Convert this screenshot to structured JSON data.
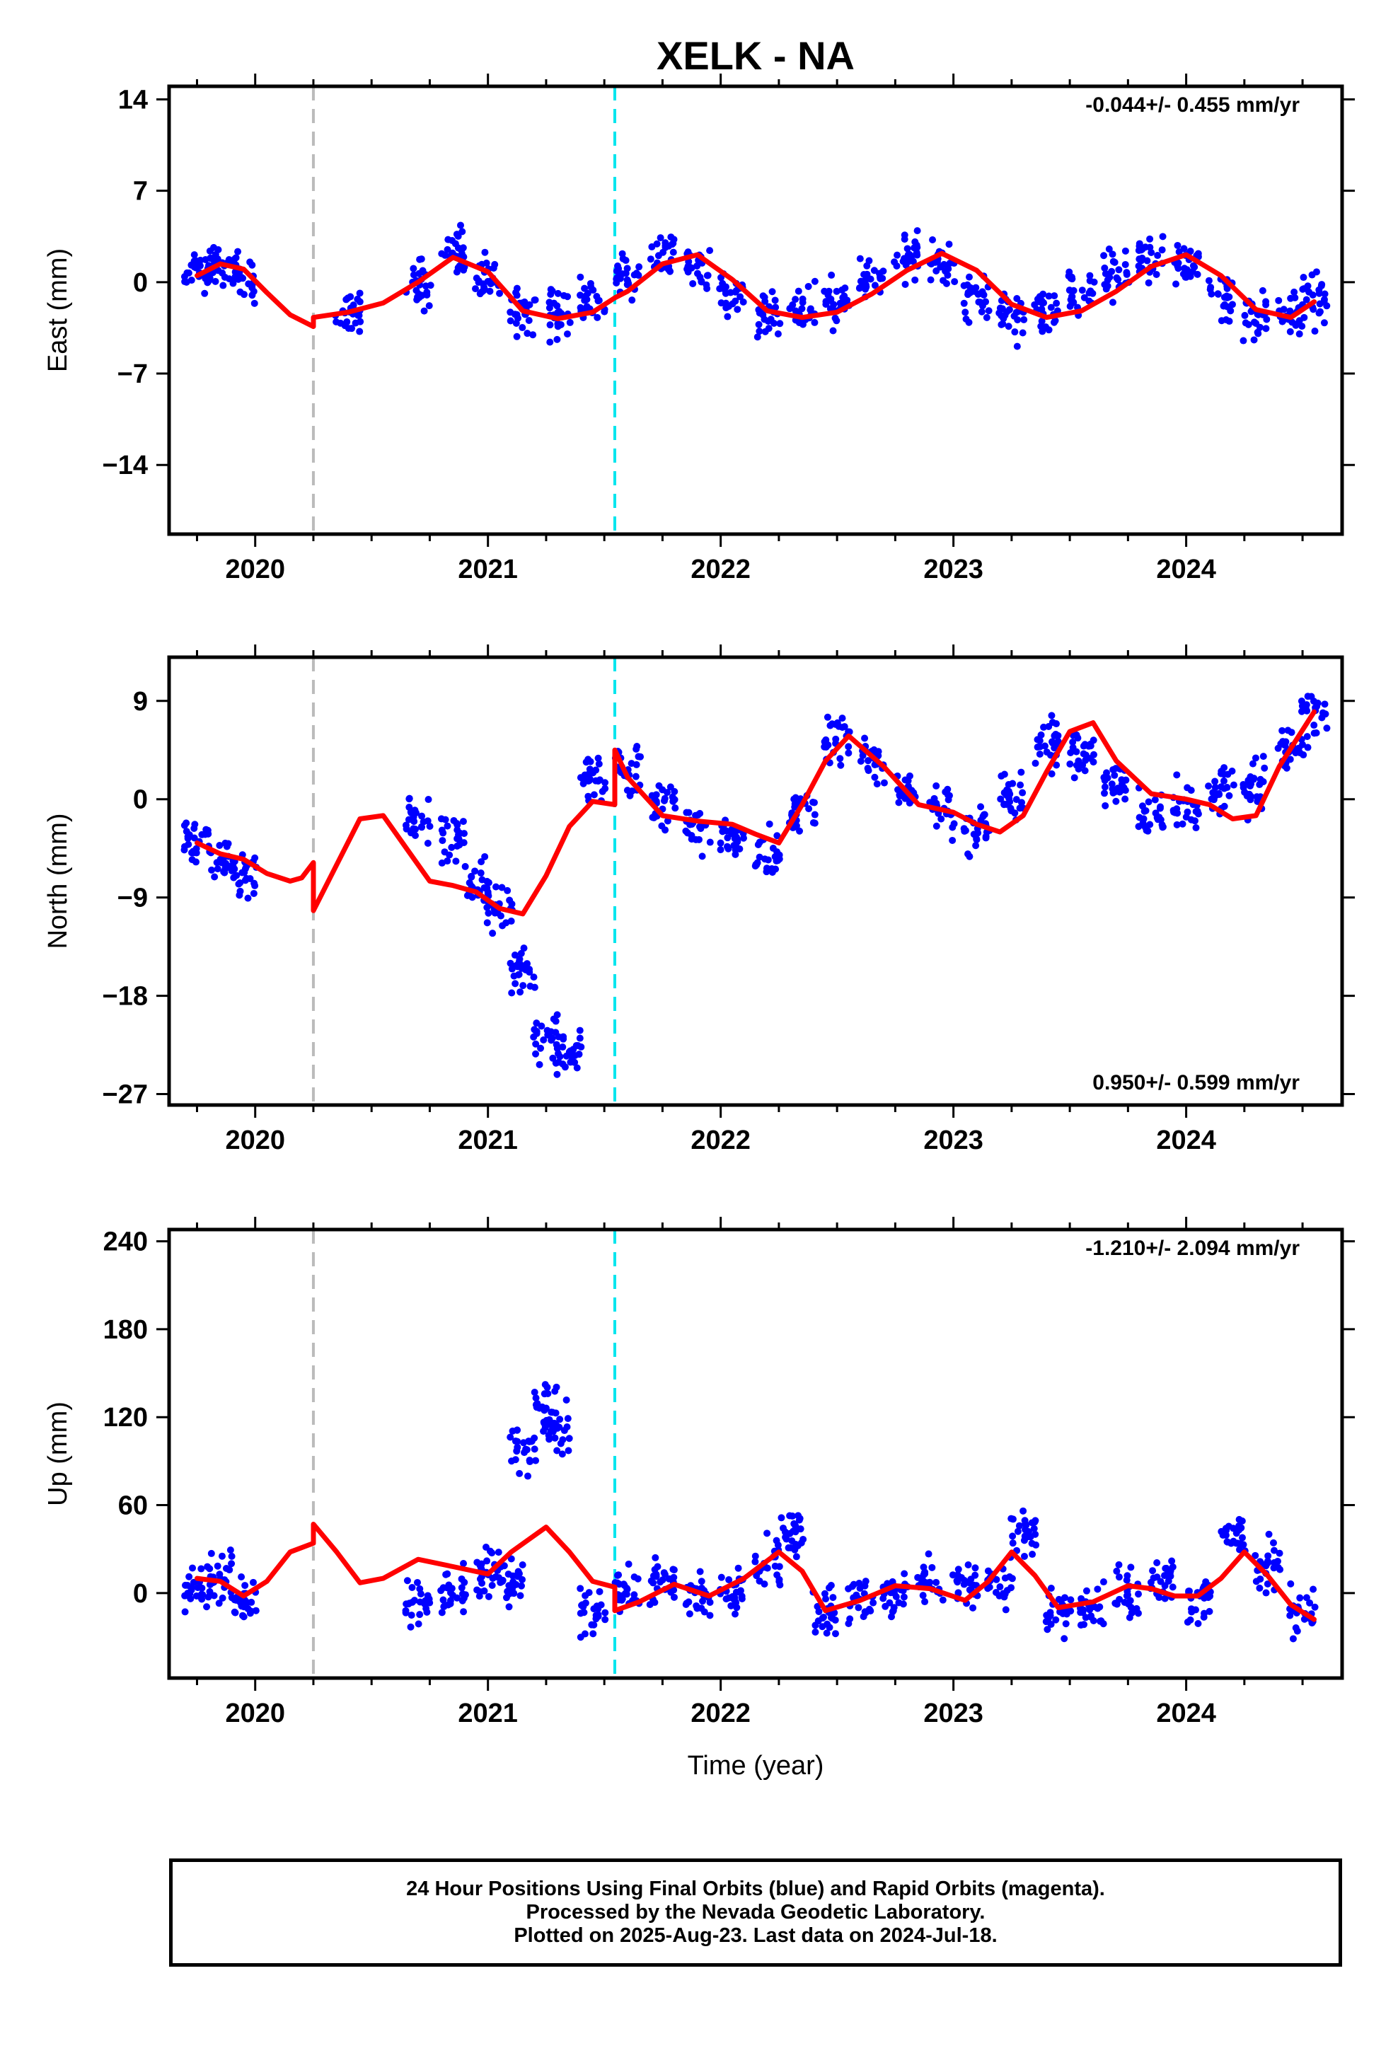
{
  "chart_data": {
    "type": "scatter",
    "title": "XELK - NA",
    "xlabel": "Time (year)",
    "x_ticks": [
      2020,
      2021,
      2022,
      2023,
      2024
    ],
    "xlim": [
      2019.63,
      2024.67
    ],
    "event_lines": [
      {
        "x": 2020.25,
        "color": "#bbbbbb",
        "style": "dashed"
      },
      {
        "x": 2021.545,
        "color": "#00e5ee",
        "style": "dashed"
      }
    ],
    "colors": {
      "points": "#0000ff",
      "model": "#ff0000"
    },
    "panels": [
      {
        "ylabel": "East (mm)",
        "ylim": [
          -19.3,
          15
        ],
        "y_ticks": [
          14,
          7,
          0,
          -7,
          -14
        ],
        "tick_labels": [
          "14",
          "7",
          "0",
          "−7",
          "−14"
        ],
        "rate": "-0.044+/- 0.455 mm/yr",
        "rate_position": "top-right",
        "series": [
          {
            "name": "Final Orbits",
            "x": [
              2019.75,
              2019.85,
              2019.95,
              2020.4,
              2020.7,
              2020.85,
              2021.0,
              2021.15,
              2021.3,
              2021.45,
              2021.6,
              2021.75,
              2021.9,
              2022.05,
              2022.2,
              2022.35,
              2022.5,
              2022.65,
              2022.8,
              2022.95,
              2023.1,
              2023.25,
              2023.4,
              2023.55,
              2023.7,
              2023.85,
              2024.0,
              2024.15,
              2024.3,
              2024.45,
              2024.55
            ],
            "y": [
              0.6,
              1.4,
              0.4,
              -2.3,
              -0.2,
              2.0,
              0.1,
              -2.4,
              -2.4,
              -1.3,
              0.7,
              2.1,
              1.3,
              -1.1,
              -2.6,
              -2.3,
              -1.2,
              0.4,
              1.8,
              1.3,
              -1.2,
              -2.6,
              -2.3,
              -0.9,
              0.8,
              2.1,
              1.3,
              -1.0,
              -2.6,
              -2.3,
              -1.3
            ]
          }
        ],
        "model": {
          "x": [
            2019.75,
            2019.85,
            2019.95,
            2020.05,
            2020.15,
            2020.25,
            2020.25,
            2020.4,
            2020.55,
            2020.7,
            2020.85,
            2021.0,
            2021.15,
            2021.3,
            2021.45,
            2021.545,
            2021.6,
            2021.75,
            2021.9,
            2022.05,
            2022.2,
            2022.35,
            2022.5,
            2022.65,
            2022.8,
            2022.95,
            2023.1,
            2023.25,
            2023.4,
            2023.55,
            2023.7,
            2023.85,
            2024.0,
            2024.15,
            2024.3,
            2024.45,
            2024.55
          ],
          "y": [
            0.5,
            1.4,
            1.0,
            -0.8,
            -2.5,
            -3.4,
            -2.7,
            -2.3,
            -1.6,
            0.0,
            1.9,
            0.8,
            -2.2,
            -2.8,
            -2.3,
            -1.2,
            -0.7,
            1.4,
            2.1,
            0.2,
            -2.2,
            -2.7,
            -2.3,
            -0.9,
            0.9,
            2.2,
            0.9,
            -1.7,
            -2.7,
            -2.2,
            -0.7,
            1.2,
            2.1,
            0.5,
            -2.1,
            -2.7,
            -1.5
          ]
        }
      },
      {
        "ylabel": "North (mm)",
        "ylim": [
          -28,
          13
        ],
        "y_ticks": [
          9,
          0,
          -9,
          -18,
          -27
        ],
        "tick_labels": [
          "9",
          "0",
          "−9",
          "−18",
          "−27"
        ],
        "rate": "0.950+/- 0.599 mm/yr",
        "rate_position": "bottom-right",
        "series": [
          {
            "name": "Final Orbits",
            "x": [
              2019.75,
              2019.85,
              2019.95,
              2020.7,
              2020.85,
              2020.95,
              2021.05,
              2021.15,
              2021.25,
              2021.35,
              2021.45,
              2021.6,
              2021.75,
              2021.9,
              2022.05,
              2022.2,
              2022.35,
              2022.5,
              2022.65,
              2022.8,
              2022.95,
              2023.1,
              2023.25,
              2023.4,
              2023.55,
              2023.7,
              2023.85,
              2024.0,
              2024.15,
              2024.3,
              2024.45,
              2024.55
            ],
            "y": [
              -3.5,
              -5.5,
              -7.0,
              -2.0,
              -3.5,
              -8.0,
              -10.0,
              -16.0,
              -22.0,
              -23.0,
              2.0,
              2.5,
              -0.5,
              -3.0,
              -3.5,
              -5.0,
              -1.0,
              5.5,
              3.5,
              0.5,
              -1.0,
              -2.5,
              0.5,
              5.0,
              4.0,
              1.5,
              -1.5,
              -0.5,
              0.5,
              1.0,
              4.5,
              7.5
            ]
          }
        ],
        "model": {
          "x": [
            2019.75,
            2019.85,
            2019.95,
            2020.05,
            2020.15,
            2020.2,
            2020.25,
            2020.25,
            2020.35,
            2020.45,
            2020.55,
            2020.65,
            2020.75,
            2020.85,
            2020.95,
            2021.05,
            2021.15,
            2021.25,
            2021.35,
            2021.45,
            2021.545,
            2021.545,
            2021.6,
            2021.75,
            2021.9,
            2022.05,
            2022.15,
            2022.25,
            2022.35,
            2022.45,
            2022.55,
            2022.7,
            2022.85,
            2023.0,
            2023.1,
            2023.2,
            2023.3,
            2023.4,
            2023.5,
            2023.6,
            2023.7,
            2023.85,
            2024.0,
            2024.1,
            2024.2,
            2024.3,
            2024.4,
            2024.55
          ],
          "y": [
            -4.0,
            -5.0,
            -5.5,
            -6.8,
            -7.5,
            -7.2,
            -5.8,
            -10.2,
            -6.0,
            -1.8,
            -1.5,
            -4.5,
            -7.5,
            -7.9,
            -8.5,
            -10.0,
            -10.5,
            -7.0,
            -2.5,
            -0.2,
            -0.5,
            4.5,
            2.0,
            -1.5,
            -2.0,
            -2.3,
            -3.2,
            -4.0,
            -0.5,
            3.5,
            5.8,
            3.0,
            -0.5,
            -1.2,
            -2.3,
            -3.0,
            -1.5,
            2.5,
            6.2,
            7.0,
            3.5,
            0.5,
            0.0,
            -0.5,
            -1.8,
            -1.5,
            3.0,
            8.0
          ]
        }
      },
      {
        "ylabel": "Up (mm)",
        "ylim": [
          -58,
          248
        ],
        "y_ticks": [
          240,
          180,
          120,
          60,
          0
        ],
        "tick_labels": [
          "240",
          "180",
          "120",
          "60",
          "0"
        ],
        "rate": "-1.210+/- 2.094 mm/yr",
        "rate_position": "top-right",
        "series": [
          {
            "name": "Final Orbits",
            "x": [
              2019.75,
              2019.85,
              2019.95,
              2020.7,
              2020.85,
              2021.0,
              2021.1,
              2021.15,
              2021.25,
              2021.3,
              2021.45,
              2021.6,
              2021.75,
              2021.9,
              2022.05,
              2022.2,
              2022.3,
              2022.45,
              2022.6,
              2022.75,
              2022.9,
              2023.05,
              2023.2,
              2023.3,
              2023.45,
              2023.6,
              2023.75,
              2023.9,
              2024.05,
              2024.2,
              2024.35,
              2024.5
            ],
            "y": [
              6.0,
              12.0,
              -5.0,
              -6.0,
              2.0,
              14.0,
              10.0,
              95.0,
              125.0,
              110.0,
              -10.0,
              -2.0,
              5.0,
              -3.0,
              2.0,
              20.0,
              40.0,
              -15.0,
              -5.0,
              2.0,
              8.0,
              3.0,
              5.0,
              40.0,
              -12.0,
              -8.0,
              0.0,
              10.0,
              -8.0,
              40.0,
              20.0,
              -10.0
            ]
          }
        ],
        "model": {
          "x": [
            2019.75,
            2019.85,
            2019.95,
            2020.05,
            2020.15,
            2020.25,
            2020.25,
            2020.35,
            2020.45,
            2020.55,
            2020.7,
            2020.85,
            2021.0,
            2021.1,
            2021.25,
            2021.35,
            2021.45,
            2021.545,
            2021.545,
            2021.65,
            2021.8,
            2021.95,
            2022.1,
            2022.25,
            2022.35,
            2022.45,
            2022.6,
            2022.75,
            2022.9,
            2023.05,
            2023.15,
            2023.25,
            2023.35,
            2023.45,
            2023.6,
            2023.75,
            2023.85,
            2023.95,
            2024.05,
            2024.15,
            2024.25,
            2024.35,
            2024.45,
            2024.55
          ],
          "y": [
            10.0,
            8.0,
            -2.0,
            8.0,
            28.0,
            34.0,
            47.0,
            28.0,
            7.0,
            10.0,
            23.0,
            18.0,
            13.0,
            28.0,
            45.0,
            28.0,
            8.0,
            4.0,
            -12.0,
            -6.0,
            6.0,
            -2.0,
            10.0,
            28.0,
            15.0,
            -12.0,
            -5.0,
            5.0,
            3.0,
            -5.0,
            8.0,
            28.0,
            12.0,
            -10.0,
            -6.0,
            5.0,
            3.0,
            -2.0,
            -2.0,
            10.0,
            28.0,
            12.0,
            -8.0,
            -18.0
          ]
        }
      }
    ],
    "notes": [
      "24 Hour Positions Using Final Orbits (blue) and Rapid Orbits (magenta).",
      "Processed by the Nevada Geodetic Laboratory.",
      "Plotted on 2025-Aug-23. Last data on 2024-Jul-18."
    ]
  }
}
